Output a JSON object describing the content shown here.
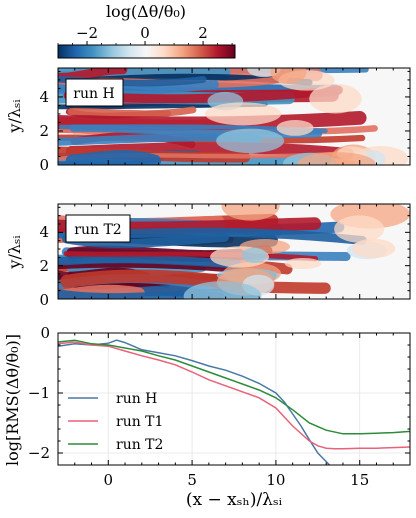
{
  "colorbar": {
    "label": "log(Δθ/θ₀)",
    "range": [
      -3,
      3.1
    ],
    "tick_labels": [
      "−2",
      "0",
      "2"
    ],
    "tick_values": [
      -2,
      0,
      2
    ],
    "colormap": "RdBu_r",
    "colors": [
      "#053061",
      "#2166ac",
      "#4393c3",
      "#92c5de",
      "#d1e5f0",
      "#f7f7f7",
      "#fddbc7",
      "#f4a582",
      "#d6604d",
      "#b2182b",
      "#67001f"
    ]
  },
  "panels": [
    {
      "label": "run H",
      "ylabel": "y/λₛᵢ",
      "yticks": [
        "0",
        "2",
        "4"
      ]
    },
    {
      "label": "run T2",
      "ylabel": "y/λₛᵢ",
      "yticks": [
        "0",
        "2",
        "4"
      ]
    }
  ],
  "chart_data": {
    "type": "line",
    "xlabel": "(x − xₛₕ)/λₛᵢ",
    "ylabel": "log[RMS(Δθ/θ₀)]",
    "xlim": [
      -3,
      18
    ],
    "ylim": [
      -2.2,
      0
    ],
    "xtick_labels": [
      "0",
      "5",
      "10",
      "15"
    ],
    "ytick_labels": [
      "0",
      "−1",
      "−2"
    ],
    "grid": true,
    "legend_position": "lower-left",
    "series": [
      {
        "name": "run H",
        "color": "#4a78a6",
        "x": [
          -3,
          -2,
          -1,
          0,
          0.5,
          1,
          2,
          3,
          4,
          5,
          6,
          7,
          8,
          9,
          10,
          10.5,
          11,
          11.5,
          12,
          12.5,
          13.2
        ],
        "y": [
          -0.22,
          -0.18,
          -0.2,
          -0.17,
          -0.12,
          -0.16,
          -0.28,
          -0.33,
          -0.38,
          -0.46,
          -0.55,
          -0.62,
          -0.72,
          -0.84,
          -1.0,
          -1.15,
          -1.35,
          -1.55,
          -1.78,
          -2.0,
          -2.2
        ]
      },
      {
        "name": "run T1",
        "color": "#e8627a",
        "x": [
          -3,
          -2,
          -1,
          0,
          1,
          2,
          3,
          4,
          5,
          6,
          7,
          8,
          9,
          10,
          11,
          12,
          12.5,
          13,
          13.5,
          14,
          15,
          16,
          17,
          18
        ],
        "y": [
          -0.18,
          -0.15,
          -0.2,
          -0.22,
          -0.3,
          -0.38,
          -0.45,
          -0.53,
          -0.65,
          -0.78,
          -0.88,
          -0.98,
          -1.08,
          -1.25,
          -1.55,
          -1.8,
          -1.88,
          -1.92,
          -1.93,
          -1.93,
          -1.92,
          -1.92,
          -1.91,
          -1.9
        ]
      },
      {
        "name": "run T2",
        "color": "#2e8b3a",
        "x": [
          -3,
          -2,
          -1,
          0,
          1,
          2,
          3,
          4,
          5,
          6,
          7,
          8,
          9,
          10,
          11,
          12,
          13,
          14,
          15,
          16,
          17,
          18
        ],
        "y": [
          -0.15,
          -0.12,
          -0.18,
          -0.2,
          -0.25,
          -0.3,
          -0.38,
          -0.45,
          -0.55,
          -0.65,
          -0.75,
          -0.85,
          -0.95,
          -1.08,
          -1.28,
          -1.5,
          -1.62,
          -1.68,
          -1.68,
          -1.67,
          -1.66,
          -1.64
        ]
      }
    ]
  }
}
